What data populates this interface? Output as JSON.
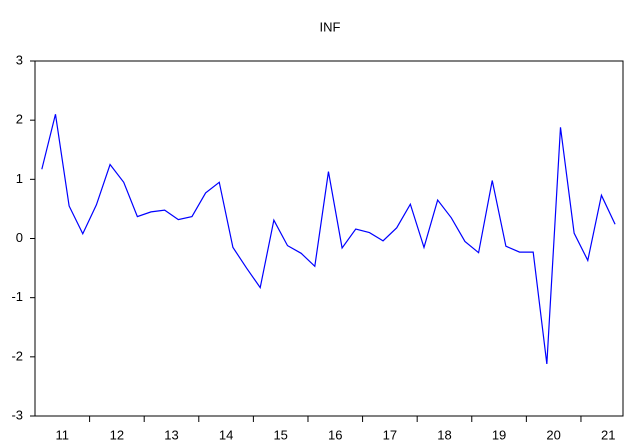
{
  "chart_data": {
    "type": "line",
    "title": "INF",
    "x": [
      2011.125,
      2011.375,
      2011.625,
      2011.875,
      2012.125,
      2012.375,
      2012.625,
      2012.875,
      2013.125,
      2013.375,
      2013.625,
      2013.875,
      2014.125,
      2014.375,
      2014.625,
      2014.875,
      2015.125,
      2015.375,
      2015.625,
      2015.875,
      2016.125,
      2016.375,
      2016.625,
      2016.875,
      2017.125,
      2017.375,
      2017.625,
      2017.875,
      2018.125,
      2018.375,
      2018.625,
      2018.875,
      2019.125,
      2019.375,
      2019.625,
      2019.875,
      2020.125,
      2020.375,
      2020.625,
      2020.875,
      2021.125,
      2021.375,
      2021.625
    ],
    "series": [
      {
        "name": "INF",
        "color": "#0000ff",
        "values": [
          1.17,
          2.1,
          0.55,
          0.08,
          0.57,
          1.25,
          0.95,
          0.37,
          0.45,
          0.48,
          0.32,
          0.37,
          0.77,
          0.95,
          -0.15,
          -0.5,
          -0.83,
          0.31,
          -0.12,
          -0.25,
          -0.47,
          1.13,
          -0.16,
          0.16,
          0.1,
          -0.04,
          0.18,
          0.58,
          -0.15,
          0.65,
          0.35,
          -0.05,
          -0.24,
          0.98,
          -0.13,
          -0.23,
          -0.23,
          -2.12,
          1.88,
          0.09,
          -0.37,
          0.73,
          0.24
        ]
      }
    ],
    "xlim": [
      2011,
      2021.77
    ],
    "xticks": [
      {
        "value": 2011.5,
        "label": "11"
      },
      {
        "value": 2012.5,
        "label": "12"
      },
      {
        "value": 2013.5,
        "label": "13"
      },
      {
        "value": 2014.5,
        "label": "14"
      },
      {
        "value": 2015.5,
        "label": "15"
      },
      {
        "value": 2016.5,
        "label": "16"
      },
      {
        "value": 2017.5,
        "label": "17"
      },
      {
        "value": 2018.5,
        "label": "18"
      },
      {
        "value": 2019.5,
        "label": "19"
      },
      {
        "value": 2020.5,
        "label": "20"
      },
      {
        "value": 2021.5,
        "label": "21"
      }
    ],
    "ylim": [
      -3,
      3
    ],
    "yticks": [
      -3,
      -2,
      -1,
      0,
      1,
      2,
      3
    ],
    "grid": false
  }
}
